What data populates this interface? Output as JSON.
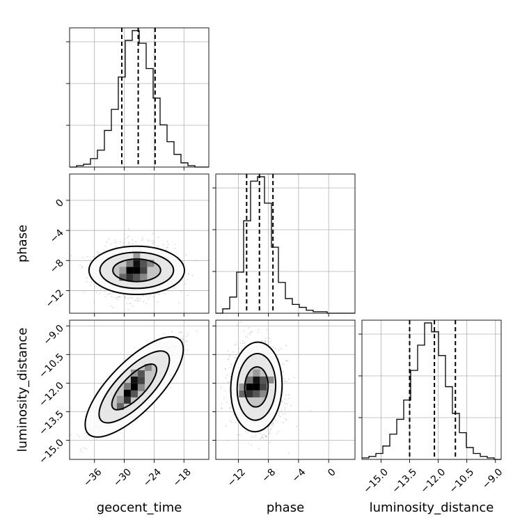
{
  "chart_data": {
    "type": "corner",
    "parameters": [
      "geocent_time",
      "phase",
      "luminosity_distance"
    ],
    "grid": true,
    "colors": {
      "line": "#000000",
      "scatter": "#8c8c8c",
      "grid": "#b0b0b0",
      "background": "#ffffff"
    },
    "axes": {
      "geocent_time": {
        "label": "geocent_time",
        "range": [
          -41,
          -13
        ],
        "ticks": [
          -36,
          -30,
          -24,
          -18
        ],
        "tick_labels": [
          "−36",
          "−30",
          "−24",
          "−18"
        ]
      },
      "phase": {
        "label": "phase",
        "range": [
          -15,
          3.5
        ],
        "ticks": [
          -12,
          -8,
          -4,
          0
        ],
        "tick_labels": [
          "−12",
          "−8",
          "−4",
          "0"
        ]
      },
      "luminosity_distance": {
        "label": "luminosity_distance",
        "range": [
          -16.0,
          -8.7
        ],
        "ticks": [
          -15.0,
          -13.5,
          -12.0,
          -10.5,
          -9.0
        ],
        "tick_labels": [
          "−15.0",
          "−13.5",
          "−12.0",
          "−10.5",
          "−9.0"
        ]
      }
    },
    "marginals": [
      {
        "parameter": "geocent_time",
        "bin_edges": [
          -41,
          -39.6,
          -38.2,
          -36.8,
          -35.4,
          -34,
          -32.6,
          -31.2,
          -29.8,
          -28.4,
          -27,
          -25.6,
          -24.2,
          -22.8,
          -21.4,
          -20,
          -18.6,
          -17.2,
          -15.8,
          -14.4,
          -13
        ],
        "counts": [
          0,
          1,
          2,
          6,
          12,
          26,
          41,
          64,
          90,
          97,
          88,
          70,
          49,
          30,
          18,
          9,
          3,
          1,
          0,
          0
        ],
        "quantiles": [
          -30.5,
          -27.2,
          -23.8
        ]
      },
      {
        "parameter": "phase",
        "bin_edges": [
          -15,
          -14.075,
          -13.15,
          -12.225,
          -11.3,
          -10.375,
          -9.45,
          -8.525,
          -7.6,
          -6.675,
          -5.75,
          -4.825,
          -3.9,
          -2.975,
          -2.05,
          -1.125,
          -0.2,
          0.725,
          1.65,
          2.575,
          3.5
        ],
        "counts": [
          0,
          3,
          11,
          28,
          63,
          90,
          93,
          75,
          45,
          21,
          10,
          6,
          4,
          2,
          1,
          1,
          0,
          0,
          0,
          0
        ],
        "quantiles": [
          -10.9,
          -9.2,
          -7.4
        ]
      },
      {
        "parameter": "luminosity_distance",
        "bin_edges": [
          -16.0,
          -15.635,
          -15.27,
          -14.905,
          -14.54,
          -14.175,
          -13.81,
          -13.445,
          -13.08,
          -12.715,
          -12.35,
          -11.985,
          -11.62,
          -11.255,
          -10.89,
          -10.525,
          -10.16,
          -9.795,
          -9.43,
          -9.065,
          -8.7
        ],
        "counts": [
          1,
          2,
          4,
          9,
          17,
          27,
          40,
          60,
          77,
          92,
          86,
          70,
          49,
          31,
          18,
          8,
          4,
          2,
          1,
          0
        ],
        "quantiles": [
          -13.5,
          -12.2,
          -11.1
        ]
      }
    ],
    "joint": [
      {
        "x": "geocent_time",
        "y": "phase",
        "center": [
          -27.5,
          -9.3
        ],
        "sd": [
          3.6,
          1.6
        ],
        "rho": 0.0,
        "contour_levels": [
          [
            9.6,
            3.2
          ],
          [
            7.4,
            2.4
          ],
          [
            4.8,
            1.5
          ]
        ]
      },
      {
        "x": "geocent_time",
        "y": "luminosity_distance",
        "center": [
          -28.0,
          -12.2
        ],
        "sd": [
          3.6,
          1.05
        ],
        "rho": 0.92,
        "contour_levels": [
          [
            9.2,
            2.6
          ],
          [
            6.6,
            1.85
          ],
          [
            4.2,
            1.15
          ]
        ]
      },
      {
        "x": "phase",
        "y": "luminosity_distance",
        "center": [
          -9.6,
          -12.2
        ],
        "sd": [
          1.6,
          1.05
        ],
        "rho": -0.05,
        "contour_levels": [
          [
            3.4,
            2.35
          ],
          [
            2.55,
            1.75
          ],
          [
            1.55,
            1.05
          ]
        ]
      }
    ]
  }
}
